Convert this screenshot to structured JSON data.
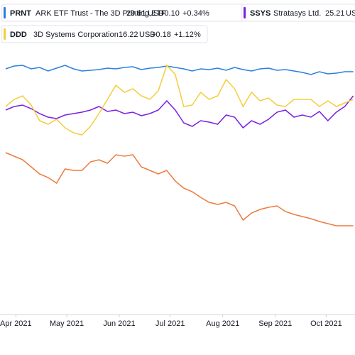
{
  "chart_data": {
    "type": "line",
    "x": [
      -6,
      -1,
      4,
      9,
      14,
      19,
      24,
      29,
      34,
      39,
      44,
      49,
      54,
      59,
      64,
      69,
      74,
      79,
      84,
      89,
      94,
      99,
      104,
      109,
      114,
      119,
      124,
      129,
      134,
      139,
      144,
      149,
      154,
      159,
      164,
      169,
      174,
      179,
      184,
      189,
      194,
      199
    ],
    "xlim": [
      -6,
      200
    ],
    "xticks": [
      {
        "value": 0,
        "label": "Apr 2021"
      },
      {
        "value": 30,
        "label": "May 2021"
      },
      {
        "value": 61,
        "label": "Jun 2021"
      },
      {
        "value": 91,
        "label": "Jul 2021"
      },
      {
        "value": 122,
        "label": "Aug 2021"
      },
      {
        "value": 153,
        "label": "Sep 2021"
      },
      {
        "value": 183,
        "label": "Oct 2021"
      }
    ],
    "ylim": [
      0,
      410
    ],
    "series": [
      {
        "name": "PRNT",
        "description": "ARK ETF Trust - The 3D Printing ETF",
        "price": "29.61",
        "currency": "USD",
        "change": "+0.10",
        "change_pct": "+0.34",
        "pct_unit": "%",
        "color": "#2a7fd9",
        "values": [
          343,
          347,
          348,
          343,
          345,
          340,
          344,
          348,
          343,
          340,
          341,
          342,
          344,
          343,
          345,
          346,
          342,
          344,
          345,
          347,
          345,
          343,
          340,
          343,
          342,
          344,
          341,
          345,
          342,
          340,
          343,
          344,
          341,
          342,
          340,
          338,
          335,
          339,
          336,
          337,
          339,
          339
        ]
      },
      {
        "name": "SSYS",
        "description": "Stratasys Ltd.",
        "price": "25.21",
        "currency": "USD",
        "color": "#7b1fe0",
        "values": [
          285,
          290,
          292,
          287,
          280,
          275,
          273,
          278,
          280,
          282,
          285,
          290,
          283,
          285,
          280,
          282,
          277,
          280,
          285,
          298,
          285,
          267,
          262,
          270,
          268,
          265,
          278,
          275,
          260,
          270,
          265,
          272,
          282,
          285,
          275,
          278,
          275,
          283,
          270,
          282,
          290,
          305
        ]
      },
      {
        "name": "DDD",
        "description": "3D Systems Corporation",
        "price": "16.22",
        "currency": "USD",
        "change": "+0.18",
        "change_pct": "+1.12",
        "pct_unit": "%",
        "color": "#f5cd3c",
        "values": [
          290,
          300,
          305,
          292,
          270,
          265,
          272,
          260,
          253,
          250,
          262,
          280,
          300,
          320,
          310,
          315,
          305,
          300,
          312,
          348,
          335,
          290,
          292,
          310,
          300,
          305,
          328,
          315,
          290,
          310,
          298,
          302,
          292,
          290,
          300,
          300,
          300,
          290,
          298,
          290,
          295,
          300
        ]
      },
      {
        "color": "#ee7a3d",
        "values": [
          225,
          220,
          215,
          205,
          195,
          190,
          182,
          202,
          200,
          200,
          212,
          215,
          210,
          222,
          220,
          222,
          205,
          200,
          195,
          200,
          185,
          175,
          170,
          162,
          155,
          152,
          155,
          150,
          130,
          140,
          145,
          148,
          150,
          142,
          138,
          135,
          132,
          128,
          125,
          122,
          122,
          122
        ]
      }
    ]
  }
}
